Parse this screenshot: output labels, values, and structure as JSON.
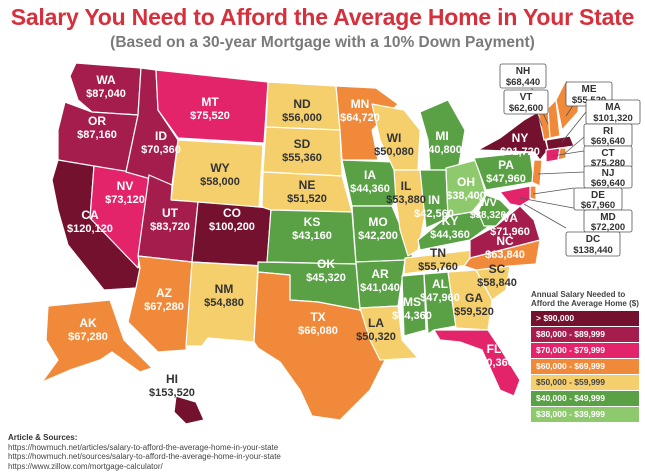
{
  "title": "Salary You Need to Afford the Average Home in Your State",
  "subtitle": "(Based on a 30-year Mortgage with a 10% Down Payment)",
  "colors": {
    "c90": "#74112f",
    "c80": "#a51d4c",
    "c70": "#e3246a",
    "c60": "#f08a3a",
    "c50": "#f5cf6c",
    "c40": "#5aa145",
    "c38": "#8ec96e"
  },
  "legend": {
    "title": "Annual Salary Needed to Afford the Average Home ($)",
    "items": [
      {
        "label": "> $90,000",
        "color": "#74112f"
      },
      {
        "label": "$80,000 - $89,999",
        "color": "#a51d4c"
      },
      {
        "label": "$70,000 - $79,999",
        "color": "#e3246a"
      },
      {
        "label": "$60,000 - $69,999",
        "color": "#f08a3a"
      },
      {
        "label": "$50,000 - $59,999",
        "color": "#f5cf6c"
      },
      {
        "label": "$40,000 - $49,999",
        "color": "#5aa145"
      },
      {
        "label": "$38,000 - $39,999",
        "color": "#8ec96e"
      }
    ]
  },
  "states": {
    "WA": {
      "abbr": "WA",
      "value": "$87,040"
    },
    "OR": {
      "abbr": "OR",
      "value": "$87,160"
    },
    "CA": {
      "abbr": "CA",
      "value": "$120,120"
    },
    "NV": {
      "abbr": "NV",
      "value": "$73,120"
    },
    "ID": {
      "abbr": "ID",
      "value": "$70,360"
    },
    "MT": {
      "abbr": "MT",
      "value": "$75,520"
    },
    "WY": {
      "abbr": "WY",
      "value": "$58,000"
    },
    "UT": {
      "abbr": "UT",
      "value": "$83,720"
    },
    "CO": {
      "abbr": "CO",
      "value": "$100,200"
    },
    "AZ": {
      "abbr": "AZ",
      "value": "$67,280"
    },
    "NM": {
      "abbr": "NM",
      "value": "$54,880"
    },
    "ND": {
      "abbr": "ND",
      "value": "$56,000"
    },
    "SD": {
      "abbr": "SD",
      "value": "$55,360"
    },
    "NE": {
      "abbr": "NE",
      "value": "$51,520"
    },
    "KS": {
      "abbr": "KS",
      "value": "$43,160"
    },
    "OK": {
      "abbr": "OK",
      "value": "$45,320"
    },
    "TX": {
      "abbr": "TX",
      "value": "$66,080"
    },
    "MN": {
      "abbr": "MN",
      "value": "$64,720"
    },
    "IA": {
      "abbr": "IA",
      "value": "$44,360"
    },
    "MO": {
      "abbr": "MO",
      "value": "$42,200"
    },
    "AR": {
      "abbr": "AR",
      "value": "$41,040"
    },
    "LA": {
      "abbr": "LA",
      "value": "$50,320"
    },
    "WI": {
      "abbr": "WI",
      "value": "$50,080"
    },
    "IL": {
      "abbr": "IL",
      "value": "$53,880"
    },
    "MI": {
      "abbr": "MI",
      "value": "$40,800"
    },
    "IN": {
      "abbr": "IN",
      "value": "$42,560"
    },
    "OH": {
      "abbr": "OH",
      "value": "$38,400"
    },
    "KY": {
      "abbr": "KY",
      "value": "$44,360"
    },
    "TN": {
      "abbr": "TN",
      "value": "$55,760"
    },
    "MS": {
      "abbr": "MS",
      "value": "$44,360"
    },
    "AL": {
      "abbr": "AL",
      "value": "$47,960"
    },
    "GA": {
      "abbr": "GA",
      "value": "$59,520"
    },
    "FL": {
      "abbr": "FL",
      "value": "$70,360"
    },
    "SC": {
      "abbr": "SC",
      "value": "$58,840"
    },
    "NC": {
      "abbr": "NC",
      "value": "$63,840"
    },
    "VA": {
      "abbr": "VA",
      "value": "$71,960"
    },
    "WV": {
      "abbr": "WV",
      "value": "$38,320"
    },
    "PA": {
      "abbr": "PA",
      "value": "$47,960"
    },
    "NY": {
      "abbr": "NY",
      "value": "$91,720"
    },
    "ME": {
      "abbr": "ME",
      "value": "$55,520"
    },
    "NH": {
      "abbr": "NH",
      "value": "$68,440"
    },
    "VT": {
      "abbr": "VT",
      "value": "$62,600"
    },
    "MA": {
      "abbr": "MA",
      "value": "$101,320"
    },
    "RI": {
      "abbr": "RI",
      "value": "$69,640"
    },
    "CT": {
      "abbr": "CT",
      "value": "$75,280"
    },
    "NJ": {
      "abbr": "NJ",
      "value": "$69,640"
    },
    "DE": {
      "abbr": "DE",
      "value": "$67,960"
    },
    "MD": {
      "abbr": "MD",
      "value": "$72,200"
    },
    "DC": {
      "abbr": "DC",
      "value": "$138,440"
    },
    "AK": {
      "abbr": "AK",
      "value": "$67,280"
    },
    "HI": {
      "abbr": "HI",
      "value": "$153,520"
    }
  },
  "sources": {
    "heading": "Article & Sources:",
    "lines": [
      "https://howmuch.net/articles/salary-to-afford-the-average-home-in-your-state",
      "https://howmuch.net/sources/salary-to-afford-the-average-home-in-your-state",
      "https://www.zillow.com/mortgage-calculator/"
    ]
  }
}
